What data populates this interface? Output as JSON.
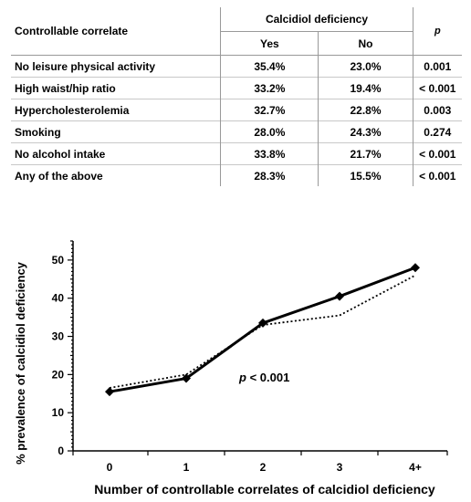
{
  "table": {
    "header_first": "Controllable correlate",
    "header_group": "Calcidiol deficiency",
    "header_yes": "Yes",
    "header_no": "No",
    "header_p": "p",
    "rows": [
      {
        "label": "No leisure physical activity",
        "yes": "35.4%",
        "no": "23.0%",
        "p": "0.001"
      },
      {
        "label": "High waist/hip ratio",
        "yes": "33.2%",
        "no": "19.4%",
        "p": "< 0.001"
      },
      {
        "label": "Hypercholesterolemia",
        "yes": "32.7%",
        "no": "22.8%",
        "p": "0.003"
      },
      {
        "label": "Smoking",
        "yes": "28.0%",
        "no": "24.3%",
        "p": "0.274"
      },
      {
        "label": "No alcohol intake",
        "yes": "33.8%",
        "no": "21.7%",
        "p": "< 0.001"
      },
      {
        "label": "Any of the above",
        "yes": "28.3%",
        "no": "15.5%",
        "p": "< 0.001"
      }
    ]
  },
  "chart_data": {
    "type": "line",
    "categories": [
      "0",
      "1",
      "2",
      "3",
      "4+"
    ],
    "series": [
      {
        "style": "solid",
        "marker": "diamond",
        "color": "#000000",
        "values": [
          15.5,
          19.0,
          33.5,
          40.5,
          48.0
        ]
      },
      {
        "style": "dotted",
        "marker": "none",
        "color": "#000000",
        "values": [
          16.5,
          20.0,
          33.0,
          35.5,
          46.0
        ]
      }
    ],
    "xlabel": "Number of controllable correlates of calcidiol deficiency",
    "ylabel": "% prevalence of calcidiol  deficiency",
    "ylim": [
      0,
      55
    ],
    "yticks": [
      "0",
      "10",
      "20",
      "30",
      "40",
      "50"
    ],
    "ytick_values": [
      0,
      10,
      20,
      30,
      40,
      50
    ],
    "annotation_prefix": "p",
    "annotation_rest": " < 0.001",
    "grid": false
  }
}
